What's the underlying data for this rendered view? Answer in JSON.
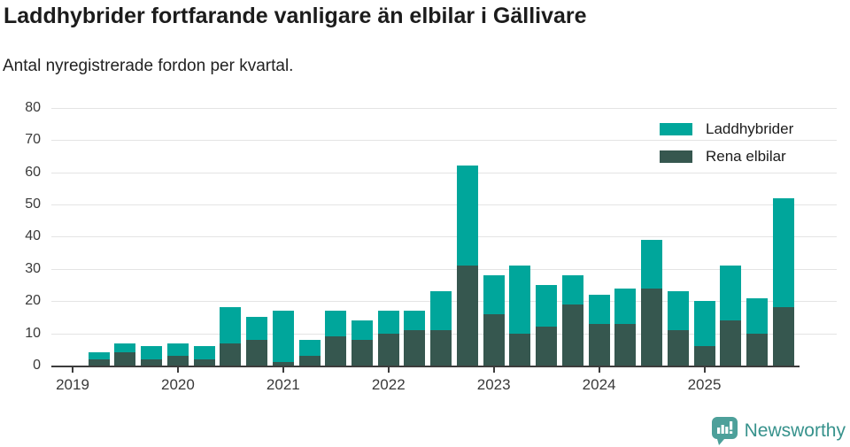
{
  "header": {
    "title": "Laddhybrider fortfarande vanligare än elbilar i Gällivare",
    "subtitle": "Antal nyregistrerade fordon per kvartal."
  },
  "legend": {
    "items": [
      {
        "label": "Laddhybrider",
        "color": "#00a69b"
      },
      {
        "label": "Rena elbilar",
        "color": "#36574f"
      }
    ]
  },
  "footer": {
    "brand": "Newsworthy",
    "brand_color": "#37928c",
    "logo_icon": "bar-chart-speech-bubble",
    "logo_color": "#4da09a"
  },
  "chart_data": {
    "type": "bar",
    "stacked": true,
    "title": "Laddhybrider fortfarande vanligare än elbilar i Gällivare",
    "subtitle": "Antal nyregistrerade fordon per kvartal.",
    "xlabel": "",
    "ylabel": "",
    "ylim": [
      0,
      80
    ],
    "yticks": [
      0,
      10,
      20,
      30,
      40,
      50,
      60,
      70,
      80
    ],
    "grid": true,
    "legend_position": "top-right",
    "categories": [
      "2019 Q1",
      "2019 Q2",
      "2019 Q3",
      "2019 Q4",
      "2020 Q1",
      "2020 Q2",
      "2020 Q3",
      "2020 Q4",
      "2021 Q1",
      "2021 Q2",
      "2021 Q3",
      "2021 Q4",
      "2022 Q1",
      "2022 Q2",
      "2022 Q3",
      "2022 Q4",
      "2023 Q1",
      "2023 Q2",
      "2023 Q3",
      "2023 Q4",
      "2024 Q1",
      "2024 Q2",
      "2024 Q3",
      "2024 Q4",
      "2025 Q1",
      "2025 Q2",
      "2025 Q3",
      "2025 Q4"
    ],
    "x_tick_labels": [
      "2019",
      "2020",
      "2021",
      "2022",
      "2023",
      "2024",
      "2025"
    ],
    "series": [
      {
        "name": "Laddhybrider",
        "color": "#00a69b",
        "values": [
          0,
          2,
          3,
          4,
          4,
          4,
          11,
          7,
          16,
          5,
          8,
          6,
          7,
          6,
          12,
          31,
          12,
          21,
          13,
          9,
          9,
          11,
          15,
          12,
          14,
          17,
          11,
          34
        ]
      },
      {
        "name": "Rena elbilar",
        "color": "#36574f",
        "values": [
          0,
          2,
          4,
          2,
          3,
          2,
          7,
          8,
          1,
          3,
          9,
          8,
          10,
          11,
          11,
          31,
          16,
          10,
          12,
          19,
          13,
          13,
          24,
          11,
          6,
          14,
          10,
          18
        ]
      }
    ],
    "stacked_totals": [
      0,
      4,
      7,
      6,
      7,
      6,
      18,
      15,
      17,
      8,
      17,
      14,
      17,
      17,
      23,
      62,
      28,
      31,
      25,
      28,
      22,
      24,
      39,
      23,
      20,
      31,
      21,
      52
    ]
  }
}
